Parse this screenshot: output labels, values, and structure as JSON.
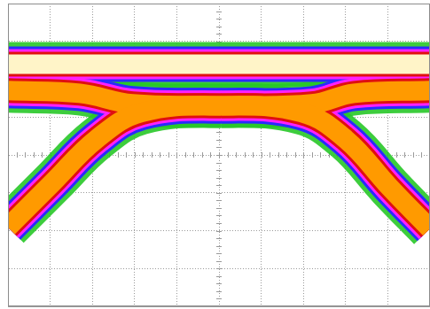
{
  "chart_data": {
    "type": "line",
    "series": [
      {
        "x": [
          0,
          10
        ],
        "values": [
          2.4,
          2.4
        ],
        "color": "#fff4c8"
      },
      {
        "x": [
          0,
          1.05,
          2.1,
          3.16,
          5.05,
          6.95,
          8.0,
          9.05,
          10
        ],
        "values": [
          -1.91,
          -0.74,
          0.42,
          1.12,
          1.3,
          1.12,
          0.42,
          -0.86,
          -1.95
        ],
        "color": "#ff9a00"
      },
      {
        "x": [
          0,
          1.7,
          2.95,
          5.05
        ],
        "values": [
          1.7,
          1.63,
          1.35,
          1.3
        ],
        "color": "#ff9a00"
      },
      {
        "x": [
          5.05,
          7.2,
          8.2,
          10
        ],
        "values": [
          1.3,
          1.35,
          1.63,
          1.7
        ],
        "color": "#ff9a00"
      }
    ],
    "xlim": [
      0,
      10
    ],
    "ylim": [
      -4,
      4
    ],
    "xticks": [
      0,
      1,
      2,
      3,
      4,
      5,
      6,
      7,
      8,
      9,
      10
    ],
    "yticks": [
      -4,
      -3,
      -2,
      -1,
      0,
      1,
      2,
      3,
      4
    ],
    "grid": true,
    "tick_labels": false
  }
}
